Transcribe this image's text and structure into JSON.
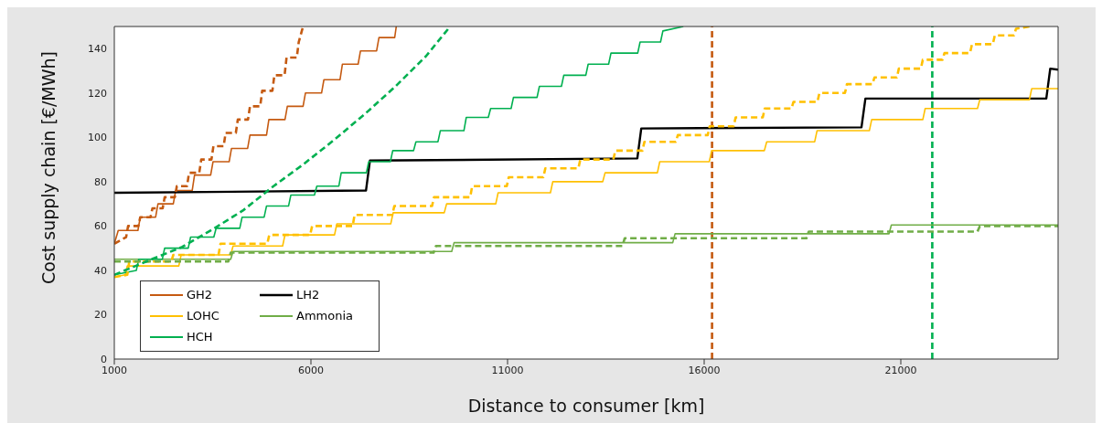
{
  "chart_data": {
    "type": "line",
    "xlabel": "Distance to consumer [km]",
    "ylabel": "Cost supply chain [€/MWh]",
    "xlim": [
      1000,
      25000
    ],
    "xticks": [
      1000,
      6000,
      11000,
      16000,
      21000
    ],
    "ylim": [
      0,
      150
    ],
    "yticks": [
      0,
      20,
      40,
      60,
      80,
      100,
      120,
      140
    ],
    "grid": false,
    "legend": "bottom left",
    "marker": "none",
    "series": [
      {
        "name": "GH2",
        "color": "#c55a11",
        "line_style": "solid",
        "x": [
          1000,
          1100,
          1600,
          1660,
          2050,
          2110,
          2500,
          2560,
          2980,
          3040,
          3450,
          3510,
          3920,
          3980,
          4390,
          4450,
          4870,
          4930,
          5340,
          5400,
          5800,
          5860,
          6270,
          6330,
          6740,
          6800,
          7200,
          7260,
          7670,
          7730,
          8130,
          8170
        ],
        "values": [
          52,
          58,
          58,
          64,
          64,
          70,
          70,
          76,
          76,
          83,
          83,
          89,
          89,
          95,
          95,
          101,
          101,
          108,
          108,
          114,
          114,
          120,
          120,
          126,
          126,
          133,
          133,
          139,
          139,
          145,
          145,
          150
        ]
      },
      {
        "name": "LH2",
        "color": "#000000",
        "line_style": "solid",
        "x": [
          1000,
          7400,
          7500,
          14300,
          14400,
          20000,
          20100,
          24700,
          24800,
          25000
        ],
        "values": [
          75,
          76,
          89.5,
          90.5,
          104,
          104.5,
          117.5,
          117.5,
          131,
          130.5
        ]
      },
      {
        "name": "LOHC",
        "color": "#ffc000",
        "line_style": "solid",
        "x": [
          1000,
          1280,
          1330,
          2640,
          2700,
          3960,
          4020,
          5280,
          5340,
          6600,
          6660,
          8030,
          8090,
          9390,
          9450,
          10700,
          10760,
          12090,
          12150,
          13420,
          13480,
          14810,
          14870,
          16130,
          16190,
          17530,
          17590,
          18810,
          18870,
          20200,
          20260,
          21560,
          21620,
          22950,
          23010,
          24270,
          24330,
          25000
        ],
        "values": [
          37,
          38,
          42,
          42,
          47,
          47,
          51,
          51,
          56,
          56,
          61,
          61,
          66,
          66,
          70,
          70,
          75,
          75,
          80,
          80,
          84,
          84,
          89,
          89,
          94,
          94,
          98,
          98,
          103,
          103,
          108,
          108,
          113,
          113,
          117,
          117,
          122,
          122
        ]
      },
      {
        "name": "Ammonia",
        "color": "#70ad47",
        "line_style": "solid",
        "x": [
          1000,
          3960,
          4020,
          9580,
          9640,
          15200,
          15260,
          20700,
          20760,
          25000
        ],
        "values": [
          45,
          45,
          48.5,
          48.5,
          52.5,
          52.5,
          56.5,
          56.5,
          60.5,
          60.5
        ]
      },
      {
        "name": "HCH",
        "color": "#00b050",
        "line_style": "solid",
        "x": [
          1000,
          1560,
          1620,
          2220,
          2280,
          2880,
          2940,
          3530,
          3590,
          4190,
          4250,
          4810,
          4870,
          5430,
          5490,
          6090,
          6150,
          6710,
          6770,
          7410,
          7470,
          8020,
          8080,
          8610,
          8670,
          9230,
          9290,
          9890,
          9950,
          10510,
          10570,
          11090,
          11150,
          11750,
          11810,
          12370,
          12430,
          12990,
          13050,
          13570,
          13630,
          14310,
          14370,
          14890,
          14950,
          15470
        ],
        "values": [
          38,
          40,
          45,
          45,
          50,
          50,
          55,
          55,
          59,
          59,
          64,
          64,
          69,
          69,
          74,
          74,
          78,
          78,
          84,
          84,
          89,
          89,
          94,
          94,
          98,
          98,
          103,
          103,
          109,
          109,
          113,
          113,
          118,
          118,
          123,
          123,
          128,
          128,
          133,
          133,
          138,
          138,
          143,
          143,
          148,
          150
        ]
      },
      {
        "color": "#c55a11",
        "line_style": "dashed",
        "x": [
          1000,
          1300,
          1350,
          1610,
          1660,
          1920,
          1970,
          2230,
          2280,
          2540,
          2590,
          2850,
          2900,
          3160,
          3210,
          3470,
          3520,
          3780,
          3830,
          4090,
          4140,
          4400,
          4450,
          4710,
          4760,
          5020,
          5070,
          5330,
          5380,
          5640,
          5690,
          5800
        ],
        "values": [
          52,
          55,
          60,
          60,
          64,
          64,
          68,
          68,
          73,
          73,
          78,
          78,
          84,
          84,
          90,
          90,
          96,
          96,
          102,
          102,
          108,
          108,
          114,
          114,
          121,
          121,
          128,
          128,
          136,
          136,
          143,
          150
        ]
      },
      {
        "color": "#ffc000",
        "line_style": "dashed",
        "x": [
          1000,
          1330,
          1380,
          2450,
          2500,
          3650,
          3700,
          4890,
          4940,
          5980,
          6030,
          7060,
          7110,
          8070,
          8120,
          9080,
          9130,
          10050,
          10100,
          10980,
          11030,
          11910,
          11960,
          12800,
          12850,
          13690,
          13740,
          14430,
          14480,
          15280,
          15330,
          16090,
          16140,
          16750,
          16800,
          17490,
          17540,
          18220,
          18270,
          18880,
          18930,
          19580,
          19630,
          20280,
          20330,
          20900,
          20950,
          21510,
          21560,
          22060,
          22110,
          22760,
          22810,
          23340,
          23390,
          23880,
          23930,
          24270
        ],
        "values": [
          37,
          38,
          44,
          44,
          47,
          47,
          52,
          52,
          56,
          56,
          60,
          60,
          65,
          65,
          69,
          69,
          73,
          73,
          78,
          78,
          82,
          82,
          86,
          86,
          90,
          90,
          94,
          94,
          98,
          98,
          101,
          101,
          105,
          105,
          109,
          109,
          113,
          113,
          116,
          116,
          120,
          120,
          124,
          124,
          127,
          127,
          131,
          131,
          135,
          135,
          138,
          138,
          142,
          142,
          146,
          146,
          149,
          150
        ]
      },
      {
        "color": "#70ad47",
        "line_style": "dashed",
        "x": [
          1000,
          3900,
          3960,
          9120,
          9180,
          13920,
          13980,
          18600,
          18660,
          22950,
          23010,
          25000
        ],
        "values": [
          44,
          44,
          48,
          48,
          51,
          51,
          54.5,
          54.5,
          57.5,
          57.5,
          60,
          60
        ]
      },
      {
        "color": "#00b050",
        "line_style": "dashed",
        "x": [
          1000,
          1950,
          2720,
          3500,
          4270,
          5050,
          5820,
          6600,
          7370,
          8150,
          8920,
          9540
        ],
        "values": [
          38,
          45,
          50.5,
          58.5,
          67,
          78,
          88,
          99,
          110.5,
          123,
          136.5,
          150
        ]
      }
    ],
    "ref_lines": [
      {
        "axis": "x",
        "value": 16200,
        "color": "#c55a11",
        "line_style": "dashed"
      },
      {
        "axis": "x",
        "value": 21800,
        "color": "#00b050",
        "line_style": "dashed"
      }
    ]
  }
}
